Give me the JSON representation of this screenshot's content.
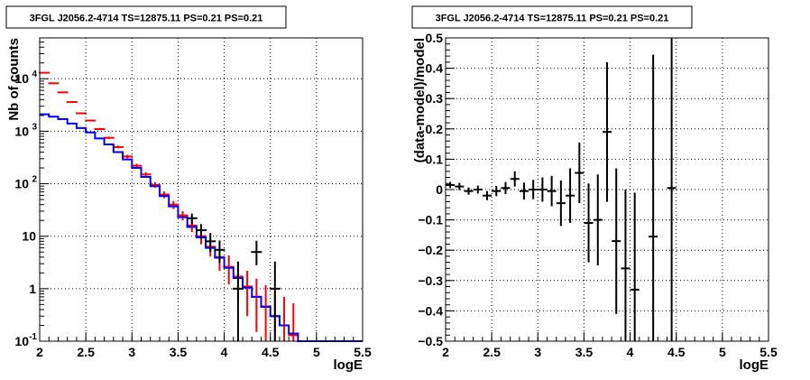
{
  "chart_data": [
    {
      "type": "line",
      "title": "3FGL J2056.2-4714 TS=12875.11 PS=0.21 PS=0.21",
      "xlabel": "logE",
      "ylabel": "Nb of counts",
      "xlim": [
        2,
        5.5
      ],
      "ylim": [
        0.1,
        60000
      ],
      "yscale": "log",
      "grid": true,
      "x_ticks": [
        "2",
        "2.5",
        "3",
        "3.5",
        "4",
        "4.5",
        "5",
        "5.5"
      ],
      "y_ticks": [
        {
          "value": 0.1,
          "label": "10",
          "exp": "-1"
        },
        {
          "value": 1,
          "label": "1",
          "exp": ""
        },
        {
          "value": 10,
          "label": "10",
          "exp": ""
        },
        {
          "value": 100,
          "label": "10",
          "exp": "2"
        },
        {
          "value": 1000,
          "label": "10",
          "exp": "3"
        },
        {
          "value": 10000,
          "label": "10",
          "exp": "4"
        }
      ],
      "bin_edges": [
        2.0,
        2.1,
        2.2,
        2.3,
        2.4,
        2.5,
        2.6,
        2.7,
        2.8,
        2.9,
        3.0,
        3.1,
        3.2,
        3.3,
        3.4,
        3.5,
        3.6,
        3.7,
        3.8,
        3.9,
        4.0,
        4.1,
        4.2,
        4.3,
        4.4,
        4.5,
        4.6,
        4.7,
        4.8,
        4.9,
        5.0,
        5.5
      ],
      "series": [
        {
          "kind": "model-histogram",
          "color": "#0000ff",
          "values": [
            2100,
            1900,
            1700,
            1400,
            1150,
            950,
            730,
            560,
            400,
            290,
            200,
            135,
            90,
            58,
            37,
            23,
            15,
            9.5,
            6,
            3.9,
            2.5,
            1.6,
            1.05,
            0.7,
            0.45,
            0.3,
            0.2,
            0.14,
            0.1,
            0.1,
            0.1
          ]
        },
        {
          "kind": "model-errors",
          "color": "#ff0000",
          "x": [
            2.05,
            2.15,
            2.25,
            2.35,
            2.45,
            2.55,
            2.65,
            2.75,
            2.85,
            2.95,
            3.05,
            3.15,
            3.25,
            3.35,
            3.45,
            3.55,
            3.65,
            3.75,
            3.85,
            3.95,
            4.05,
            4.15,
            4.25,
            4.35,
            4.45,
            4.55,
            4.65,
            4.75
          ],
          "y": [
            13000,
            8200,
            5500,
            3600,
            2200,
            1600,
            1100,
            750,
            500,
            330,
            220,
            150,
            95,
            62,
            40,
            25,
            16,
            10,
            6.3,
            4,
            2.6,
            1.7,
            1.1,
            0.7,
            0.46,
            0.3,
            0.2,
            0.13
          ],
          "yerr_low": [
            200,
            150,
            120,
            100,
            80,
            60,
            50,
            40,
            30,
            25,
            20,
            16,
            12,
            9,
            7,
            5,
            4,
            3,
            2.2,
            1.8,
            1.4,
            1.1,
            0.8,
            0.55,
            0.38,
            0.27,
            0.19,
            0.12
          ],
          "yerr_high": [
            200,
            150,
            120,
            100,
            80,
            60,
            50,
            40,
            30,
            25,
            20,
            16,
            12,
            9,
            7,
            5,
            4,
            3,
            2.3,
            2,
            1.7,
            1.4,
            1.1,
            0.85,
            0.7,
            0.6,
            0.5,
            0.4
          ]
        },
        {
          "kind": "data",
          "color": "#000000",
          "x": [
            3.65,
            3.75,
            3.85,
            3.95,
            4.15,
            4.35,
            4.55
          ],
          "y": [
            22,
            13,
            8,
            5.5,
            1,
            5,
            1
          ],
          "yerr_low": [
            5,
            4,
            3,
            2.4,
            0.9,
            2.2,
            0.9
          ],
          "yerr_high": [
            5,
            4,
            3.5,
            2.8,
            2.3,
            3.2,
            2.3
          ]
        }
      ]
    },
    {
      "type": "scatter",
      "title": "3FGL J2056.2-4714 TS=12875.11 PS=0.21 PS=0.21",
      "xlabel": "logE",
      "ylabel": "(data-model)/model",
      "xlim": [
        2,
        5.5
      ],
      "ylim": [
        -0.5,
        0.5
      ],
      "grid": true,
      "x_ticks": [
        "2",
        "2.5",
        "3",
        "3.5",
        "4",
        "4.5",
        "5",
        "5.5"
      ],
      "y_ticks": [
        "−0.5",
        "−0.4",
        "−0.3",
        "−0.2",
        "−0.1",
        "0",
        "0.1",
        "0.2",
        "0.3",
        "0.4",
        "0.5"
      ],
      "y_tick_values": [
        -0.5,
        -0.4,
        -0.3,
        -0.2,
        -0.1,
        0,
        0.1,
        0.2,
        0.3,
        0.4,
        0.5
      ],
      "points": {
        "color": "#000000",
        "x": [
          2.05,
          2.15,
          2.25,
          2.35,
          2.45,
          2.55,
          2.65,
          2.75,
          2.85,
          2.95,
          3.05,
          3.15,
          3.25,
          3.35,
          3.45,
          3.55,
          3.65,
          3.75,
          3.85,
          3.95,
          4.05,
          4.25,
          4.45
        ],
        "y": [
          0.015,
          0.01,
          -0.005,
          0.0,
          -0.02,
          -0.005,
          0.005,
          0.035,
          -0.005,
          0.0,
          0.0,
          -0.005,
          -0.045,
          -0.02,
          0.055,
          -0.11,
          -0.1,
          0.19,
          -0.17,
          -0.26,
          -0.33,
          -0.155,
          0.005
        ],
        "yerr": [
          0.01,
          0.012,
          0.012,
          0.013,
          0.015,
          0.017,
          0.02,
          0.025,
          0.028,
          0.032,
          0.04,
          0.05,
          0.075,
          0.09,
          0.1,
          0.13,
          0.15,
          0.23,
          0.24,
          0.26,
          0.32,
          0.6,
          0.55
        ]
      }
    }
  ]
}
